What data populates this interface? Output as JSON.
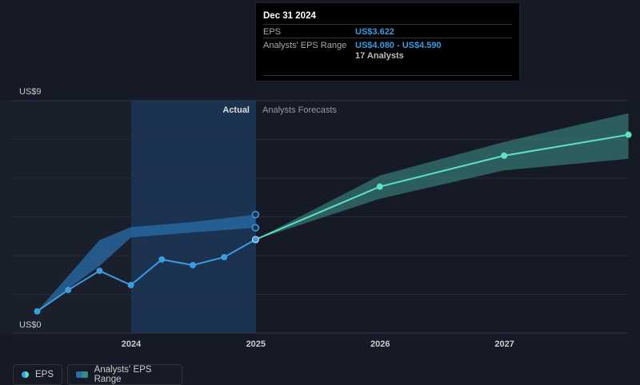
{
  "chart_data": {
    "type": "line",
    "y_axis": {
      "label_top": "US$9",
      "label_bottom": "US$0",
      "ylim": [
        0,
        9
      ]
    },
    "x_ticks": [
      "2024",
      "2025",
      "2026",
      "2027"
    ],
    "sections": {
      "actual": "Actual",
      "forecast": "Analysts Forecasts"
    },
    "eps_actual": [
      {
        "date": "2023-03-31",
        "value": 0.84
      },
      {
        "date": "2023-06-30",
        "value": 1.67
      },
      {
        "date": "2023-09-30",
        "value": 2.41
      },
      {
        "date": "2023-12-31",
        "value": 1.86
      },
      {
        "date": "2024-03-31",
        "value": 2.85
      },
      {
        "date": "2024-06-30",
        "value": 2.63
      },
      {
        "date": "2024-09-30",
        "value": 2.94
      },
      {
        "date": "2024-12-31",
        "value": 3.622
      }
    ],
    "actual_range": [
      {
        "date": "2023-03-31",
        "low": 0.84,
        "high": 0.84
      },
      {
        "date": "2023-09-30",
        "low": 2.6,
        "high": 3.6
      },
      {
        "date": "2023-12-31",
        "low": 3.7,
        "high": 4.1
      },
      {
        "date": "2024-06-30",
        "low": 3.9,
        "high": 4.3
      },
      {
        "date": "2024-12-31",
        "low": 4.08,
        "high": 4.59
      }
    ],
    "eps_forecast": [
      {
        "date": "2024-12-31",
        "value": 3.622
      },
      {
        "date": "2025-12-31",
        "value": 5.67
      },
      {
        "date": "2026-12-31",
        "value": 6.87
      },
      {
        "date": "2027-12-31",
        "value": 7.68
      }
    ],
    "forecast_range": [
      {
        "date": "2024-12-31",
        "low": 3.622,
        "high": 3.622
      },
      {
        "date": "2025-12-31",
        "low": 5.2,
        "high": 6.1
      },
      {
        "date": "2026-12-31",
        "low": 6.3,
        "high": 7.4
      },
      {
        "date": "2027-12-31",
        "low": 6.75,
        "high": 8.51
      }
    ],
    "colors": {
      "eps": "#3d9be0",
      "forecast": "#5fe0c8",
      "range": "#2a6ea8",
      "forecast_range": "#3a8c80"
    },
    "legend": [
      "EPS",
      "Analysts' EPS Range"
    ],
    "legend_placement": "bottom-left"
  },
  "tooltip": {
    "date": "Dec 31 2024",
    "eps_label": "EPS",
    "eps_value": "US$3.622",
    "range_label": "Analysts' EPS Range",
    "range_value": "US$4.080 - US$4.590",
    "analysts": "17 Analysts"
  }
}
